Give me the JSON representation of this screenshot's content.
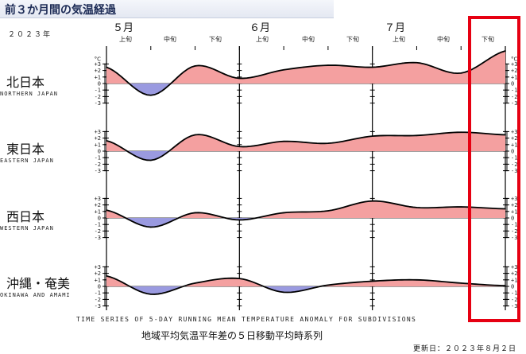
{
  "header": {
    "title": "前３か月間の気温経過",
    "year": "２０２３年"
  },
  "months": [
    {
      "label": "５月"
    },
    {
      "label": "６月"
    },
    {
      "label": "７月"
    }
  ],
  "dekads": [
    "上旬",
    "中旬",
    "下旬",
    "上旬",
    "中旬",
    "下旬",
    "上旬",
    "中旬",
    "下旬",
    "下旬"
  ],
  "footer": {
    "en_title": "TIME SERIES OF 5-DAY RUNNING MEAN TEMPERATURE ANOMALY FOR SUBDIVISIONS",
    "jp_title": "地域平均気温平年差の５日移動平均時系列",
    "updated": "更新日：２０２３年８月２日"
  },
  "colors": {
    "positive": "#f4a0a0",
    "negative": "#9a9ae0",
    "line": "#000000",
    "highlight": "#e60012"
  },
  "chart_data": {
    "type": "area",
    "y_unit": "°C",
    "ylim": [
      -3,
      3
    ],
    "y_ticks": [
      "+3",
      "+2",
      "+1",
      "0",
      "-1",
      "-2",
      "-3"
    ],
    "x": [
      "5/1",
      "5/11",
      "5/21",
      "6/1",
      "6/11",
      "6/21",
      "7/1",
      "7/11",
      "7/21",
      "8/1"
    ],
    "series": [
      {
        "name": "北日本",
        "name_en": "NORTHERN JAPAN",
        "values": [
          2.5,
          -1.8,
          2.7,
          0.8,
          2.1,
          2.8,
          2.5,
          3.2,
          1.6,
          5.0
        ]
      },
      {
        "name": "東日本",
        "name_en": "EASTERN JAPAN",
        "values": [
          1.6,
          -1.4,
          2.5,
          0.7,
          1.5,
          1.2,
          2.3,
          2.4,
          2.9,
          2.5
        ]
      },
      {
        "name": "西日本",
        "name_en": "WESTERN JAPAN",
        "values": [
          1.2,
          -1.4,
          0.8,
          -0.3,
          0.8,
          1.1,
          2.6,
          1.6,
          1.7,
          1.4
        ]
      },
      {
        "name": "沖縄・奄美",
        "name_en": "OKINAWA AND AMAMI",
        "values": [
          1.6,
          -1.2,
          0.5,
          1.2,
          -0.9,
          0.2,
          0.8,
          1.0,
          0.5,
          0.1
        ]
      }
    ]
  }
}
